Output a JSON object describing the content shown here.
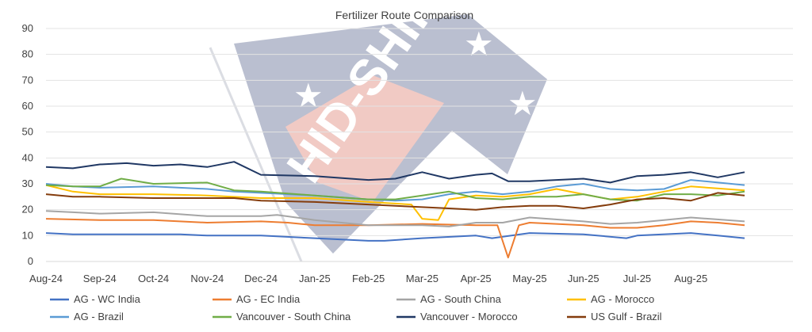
{
  "chart_data": {
    "type": "line",
    "title": "Fertilizer Route Comparison",
    "xlabel": "",
    "ylabel": "",
    "ylim": [
      0,
      90
    ],
    "yticks": [
      0,
      10,
      20,
      30,
      40,
      50,
      60,
      70,
      80,
      90
    ],
    "grid": "horizontal",
    "legend_position": "bottom",
    "x_labels": [
      "Aug-24",
      "Sep-24",
      "Oct-24",
      "Nov-24",
      "Dec-24",
      "Jan-25",
      "Feb-25",
      "Mar-25",
      "Apr-25",
      "May-25",
      "Jun-25",
      "Jul-25",
      "Aug-25"
    ],
    "x_range": [
      0,
      13.9
    ],
    "watermark": {
      "text": "HID-SHIP"
    },
    "series": [
      {
        "name": "AG - WC India",
        "color": "#4472C4",
        "x": [
          0,
          0.5,
          1,
          2,
          2.5,
          3,
          4,
          5,
          6,
          6.3,
          7,
          8,
          8.3,
          9,
          10,
          10.8,
          11,
          12,
          12.5,
          13
        ],
        "y": [
          11,
          10.5,
          10.5,
          10.5,
          10.5,
          10,
          10,
          9,
          8,
          8,
          9,
          10,
          9,
          11,
          10.5,
          9,
          10,
          11,
          10,
          9
        ]
      },
      {
        "name": "AG - EC India",
        "color": "#ED7D31",
        "x": [
          0,
          1,
          2,
          3,
          4,
          4.5,
          5,
          6,
          7,
          8,
          8.4,
          8.6,
          8.8,
          9,
          10,
          10.5,
          11,
          11.5,
          12,
          12.5,
          13
        ],
        "y": [
          16.5,
          16,
          16,
          15,
          15.5,
          15,
          14,
          14,
          14.5,
          14,
          14,
          1.5,
          14,
          15,
          14,
          13,
          13,
          14,
          15.5,
          15,
          14
        ]
      },
      {
        "name": "AG - South China",
        "color": "#A5A5A5",
        "x": [
          0,
          0.5,
          1,
          2,
          3,
          4,
          4.3,
          5,
          6,
          7,
          7.5,
          8,
          8.5,
          9,
          10,
          10.5,
          11,
          11.5,
          12,
          13
        ],
        "y": [
          19.5,
          19,
          18.5,
          19,
          17.5,
          17.5,
          18,
          16,
          14,
          14,
          13.5,
          15,
          15,
          17,
          15.5,
          14.5,
          15,
          16,
          17,
          15.5
        ]
      },
      {
        "name": "AG - Morocco",
        "color": "#FFC000",
        "x": [
          0,
          0.5,
          1,
          2,
          3,
          4,
          5,
          6,
          6.8,
          7,
          7.3,
          7.5,
          8,
          8.5,
          9,
          9.5,
          10,
          10.5,
          11,
          11.5,
          12,
          13
        ],
        "y": [
          29.5,
          27,
          26,
          26,
          25.5,
          24.5,
          24.5,
          23,
          22,
          16.5,
          16,
          24,
          25.5,
          25,
          26,
          28,
          26,
          24,
          25,
          27,
          29,
          27.5
        ]
      },
      {
        "name": "AG - Brazil",
        "color": "#5B9BD5",
        "x": [
          0,
          0.5,
          1,
          2,
          3,
          3.5,
          4,
          5,
          6,
          6.5,
          7,
          7.5,
          8,
          8.5,
          9,
          9.5,
          10,
          10.5,
          11,
          11.5,
          12,
          13
        ],
        "y": [
          30,
          29,
          28.5,
          29,
          28,
          27,
          26.5,
          25.5,
          24,
          23.5,
          24,
          26,
          27,
          26,
          27,
          29,
          30,
          28,
          27.5,
          28,
          31.5,
          29.5
        ]
      },
      {
        "name": "Vancouver - South China",
        "color": "#70AD47",
        "x": [
          0,
          0.5,
          1,
          1.4,
          2,
          3,
          3.5,
          4,
          5,
          6,
          6.5,
          7,
          7.5,
          8,
          8.5,
          9,
          9.5,
          10,
          10.5,
          11,
          11.5,
          12,
          12.5,
          13
        ],
        "y": [
          29.5,
          29,
          29,
          32,
          30,
          30.5,
          27.5,
          27,
          25.5,
          24,
          24,
          25.5,
          27,
          24.5,
          24,
          25,
          25,
          26,
          24,
          23.5,
          26,
          26,
          25.5,
          27
        ]
      },
      {
        "name": "Vancouver - Morocco",
        "color": "#203864",
        "x": [
          0,
          0.5,
          1,
          1.5,
          2,
          2.5,
          3,
          3.5,
          4,
          5,
          6,
          6.5,
          7,
          7.5,
          8,
          8.3,
          8.6,
          9,
          9.5,
          10,
          10.5,
          11,
          11.5,
          12,
          12.5,
          13
        ],
        "y": [
          36.5,
          36,
          37.5,
          38,
          37,
          37.5,
          36.5,
          38.5,
          33.5,
          33,
          31.5,
          32,
          34.5,
          32,
          33.5,
          34,
          31,
          31,
          31.5,
          32,
          30.5,
          33,
          33.5,
          34.5,
          32.5,
          34.5
        ]
      },
      {
        "name": "US Gulf - Brazil",
        "color": "#843C0C",
        "x": [
          0,
          0.5,
          1,
          2,
          3,
          3.5,
          4,
          5,
          6,
          6.5,
          7,
          7.5,
          8,
          8.5,
          9,
          9.5,
          10,
          10.5,
          11,
          11.5,
          12,
          12.5,
          13
        ],
        "y": [
          26,
          25,
          25,
          24.5,
          24.5,
          24.5,
          23.5,
          23,
          22,
          21.5,
          21,
          20.5,
          20,
          21,
          21.5,
          21.5,
          20.5,
          22,
          24,
          24.5,
          23.5,
          26.5,
          25.5
        ]
      }
    ]
  }
}
